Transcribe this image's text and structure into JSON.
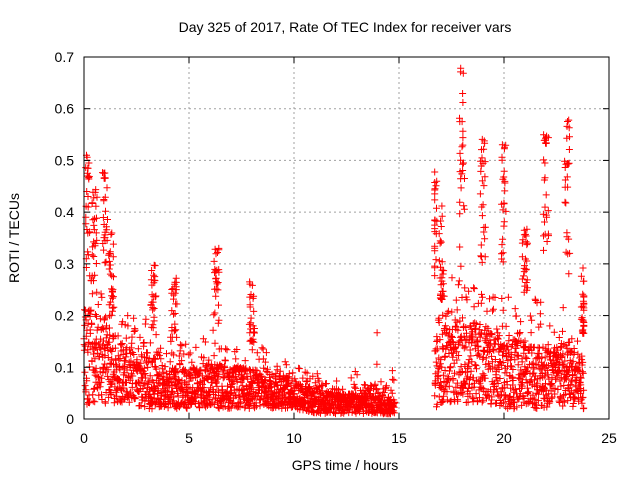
{
  "chart_data": {
    "type": "scatter",
    "title": "Day 325 of 2017, Rate Of TEC Index for receiver vars",
    "xlabel": "GPS time / hours",
    "ylabel": "ROTI / TECUs",
    "xlim": [
      0,
      25
    ],
    "ylim": [
      0,
      0.7
    ],
    "xticks": [
      "0",
      "5",
      "10",
      "15",
      "20",
      "25"
    ],
    "yticks": [
      "0",
      "0.1",
      "0.2",
      "0.3",
      "0.4",
      "0.5",
      "0.6",
      "0.7"
    ],
    "grid": true,
    "marker": "+",
    "marker_color": "#ff0000",
    "series": [
      {
        "name": "ROTI",
        "segments": [
          {
            "x_start": 0.0,
            "x_end": 14.8,
            "description": "continuous data, mostly 0.02-0.25"
          },
          {
            "x_start": 16.7,
            "x_end": 23.8,
            "description": "continuous data, mostly 0.02-0.35"
          }
        ],
        "envelope": [
          {
            "x": 0.0,
            "base": 0.02,
            "typ": 0.18,
            "peak": 0.25
          },
          {
            "x": 0.2,
            "base": 0.03,
            "typ": 0.22,
            "peak": 0.51
          },
          {
            "x": 0.5,
            "base": 0.03,
            "typ": 0.2,
            "peak": 0.45
          },
          {
            "x": 1.0,
            "base": 0.03,
            "typ": 0.2,
            "peak": 0.48
          },
          {
            "x": 1.3,
            "base": 0.03,
            "typ": 0.18,
            "peak": 0.36
          },
          {
            "x": 2.0,
            "base": 0.03,
            "typ": 0.14,
            "peak": 0.24
          },
          {
            "x": 3.0,
            "base": 0.02,
            "typ": 0.12,
            "peak": 0.2
          },
          {
            "x": 3.3,
            "base": 0.02,
            "typ": 0.12,
            "peak": 0.3
          },
          {
            "x": 4.0,
            "base": 0.02,
            "typ": 0.1,
            "peak": 0.2
          },
          {
            "x": 4.3,
            "base": 0.02,
            "typ": 0.1,
            "peak": 0.28
          },
          {
            "x": 5.0,
            "base": 0.02,
            "typ": 0.1,
            "peak": 0.19
          },
          {
            "x": 6.0,
            "base": 0.02,
            "typ": 0.11,
            "peak": 0.22
          },
          {
            "x": 6.3,
            "base": 0.02,
            "typ": 0.11,
            "peak": 0.33
          },
          {
            "x": 7.0,
            "base": 0.02,
            "typ": 0.1,
            "peak": 0.2
          },
          {
            "x": 8.0,
            "base": 0.02,
            "typ": 0.1,
            "peak": 0.27
          },
          {
            "x": 9.0,
            "base": 0.02,
            "typ": 0.09,
            "peak": 0.19
          },
          {
            "x": 10.0,
            "base": 0.02,
            "typ": 0.08,
            "peak": 0.17
          },
          {
            "x": 11.0,
            "base": 0.01,
            "typ": 0.06,
            "peak": 0.12
          },
          {
            "x": 12.0,
            "base": 0.01,
            "typ": 0.05,
            "peak": 0.15
          },
          {
            "x": 13.0,
            "base": 0.01,
            "typ": 0.05,
            "peak": 0.13
          },
          {
            "x": 14.0,
            "base": 0.01,
            "typ": 0.05,
            "peak": 0.2
          },
          {
            "x": 14.8,
            "base": 0.01,
            "typ": 0.04,
            "peak": 0.1
          },
          {
            "x": 16.7,
            "base": 0.02,
            "typ": 0.15,
            "peak": 0.5
          },
          {
            "x": 17.0,
            "base": 0.03,
            "typ": 0.18,
            "peak": 0.42
          },
          {
            "x": 18.0,
            "base": 0.03,
            "typ": 0.2,
            "peak": 0.68
          },
          {
            "x": 19.0,
            "base": 0.03,
            "typ": 0.18,
            "peak": 0.55
          },
          {
            "x": 20.0,
            "base": 0.02,
            "typ": 0.16,
            "peak": 0.55
          },
          {
            "x": 21.0,
            "base": 0.02,
            "typ": 0.15,
            "peak": 0.38
          },
          {
            "x": 22.0,
            "base": 0.02,
            "typ": 0.15,
            "peak": 0.56
          },
          {
            "x": 23.0,
            "base": 0.02,
            "typ": 0.14,
            "peak": 0.58
          },
          {
            "x": 23.8,
            "base": 0.02,
            "typ": 0.12,
            "peak": 0.3
          }
        ]
      }
    ]
  }
}
